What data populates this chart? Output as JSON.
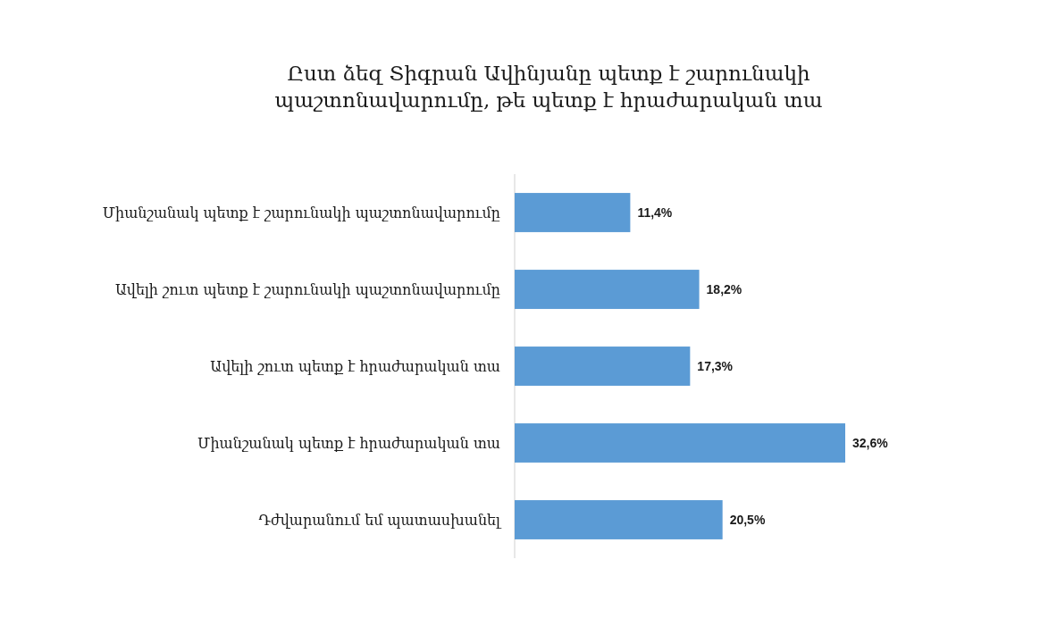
{
  "chart_data": {
    "type": "bar",
    "orientation": "horizontal",
    "title": "Ըստ ձեզ Տիգրան Ավինյանը պետք է շարունակի պաշտոնավարումը, թե պետք է հրաժարական տա",
    "categories": [
      "Միանշանակ պետք է շարունակի պաշտոնավարումը",
      "Ավելի շուտ պետք է շարունակի պաշտոնավարումը",
      "Ավելի շուտ պետք է հրաժարական տա",
      "Միանշանակ պետք է հրաժարական տա",
      "Դժվարանում եմ պատասխանել"
    ],
    "values": [
      11.4,
      18.2,
      17.3,
      32.6,
      20.5
    ],
    "value_labels": [
      "11,4%",
      "18,2%",
      "17,3%",
      "32,6%",
      "20,5%"
    ],
    "color": "#5b9bd5"
  }
}
